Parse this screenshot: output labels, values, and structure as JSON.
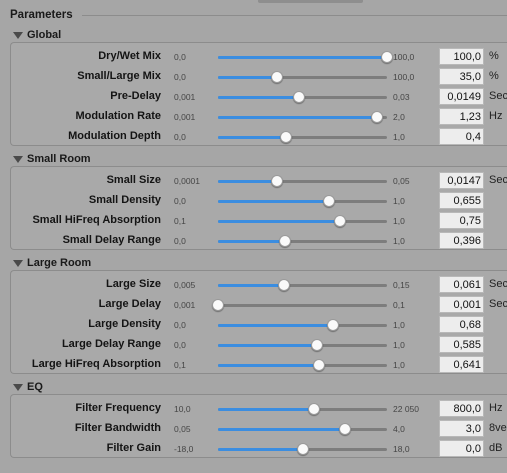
{
  "title": "Parameters",
  "colors": {
    "fill": "#3b8de0",
    "background": "#a6a6a6"
  },
  "sections": [
    {
      "name": "Global",
      "rows": [
        {
          "label": "Dry/Wet Mix",
          "min": "0,0",
          "max": "100,0",
          "value": "100,0",
          "unit": "%",
          "level": 1.0
        },
        {
          "label": "Small/Large Mix",
          "min": "0,0",
          "max": "100,0",
          "value": "35,0",
          "unit": "%",
          "level": 0.35
        },
        {
          "label": "Pre-Delay",
          "min": "0,001",
          "max": "0,03",
          "value": "0,0149",
          "unit": "Secs",
          "level": 0.48
        },
        {
          "label": "Modulation Rate",
          "min": "0,001",
          "max": "2,0",
          "value": "1,23",
          "unit": "Hz",
          "level": 0.94
        },
        {
          "label": "Modulation Depth",
          "min": "0,0",
          "max": "1,0",
          "value": "0,4",
          "unit": "",
          "level": 0.4
        }
      ]
    },
    {
      "name": "Small Room",
      "rows": [
        {
          "label": "Small Size",
          "min": "0,0001",
          "max": "0,05",
          "value": "0,0147",
          "unit": "Secs",
          "level": 0.35
        },
        {
          "label": "Small Density",
          "min": "0,0",
          "max": "1,0",
          "value": "0,655",
          "unit": "",
          "level": 0.655
        },
        {
          "label": "Small HiFreq Absorption",
          "min": "0,1",
          "max": "1,0",
          "value": "0,75",
          "unit": "",
          "level": 0.72
        },
        {
          "label": "Small Delay Range",
          "min": "0,0",
          "max": "1,0",
          "value": "0,396",
          "unit": "",
          "level": 0.396
        }
      ]
    },
    {
      "name": "Large Room",
      "rows": [
        {
          "label": "Large Size",
          "min": "0,005",
          "max": "0,15",
          "value": "0,061",
          "unit": "Secs",
          "level": 0.39
        },
        {
          "label": "Large Delay",
          "min": "0,001",
          "max": "0,1",
          "value": "0,001",
          "unit": "Secs",
          "level": 0.0
        },
        {
          "label": "Large Density",
          "min": "0,0",
          "max": "1,0",
          "value": "0,68",
          "unit": "",
          "level": 0.68
        },
        {
          "label": "Large Delay Range",
          "min": "0,0",
          "max": "1,0",
          "value": "0,585",
          "unit": "",
          "level": 0.585
        },
        {
          "label": "Large HiFreq Absorption",
          "min": "0,1",
          "max": "1,0",
          "value": "0,641",
          "unit": "",
          "level": 0.6
        }
      ]
    },
    {
      "name": "EQ",
      "rows": [
        {
          "label": "Filter Frequency",
          "min": "10,0",
          "max": "22 050",
          "value": "800,0",
          "unit": "Hz",
          "level": 0.57
        },
        {
          "label": "Filter Bandwidth",
          "min": "0,05",
          "max": "4,0",
          "value": "3,0",
          "unit": "8ve",
          "level": 0.75
        },
        {
          "label": "Filter Gain",
          "min": "-18,0",
          "max": "18,0",
          "value": "0,0",
          "unit": "dB",
          "level": 0.5
        }
      ]
    }
  ]
}
